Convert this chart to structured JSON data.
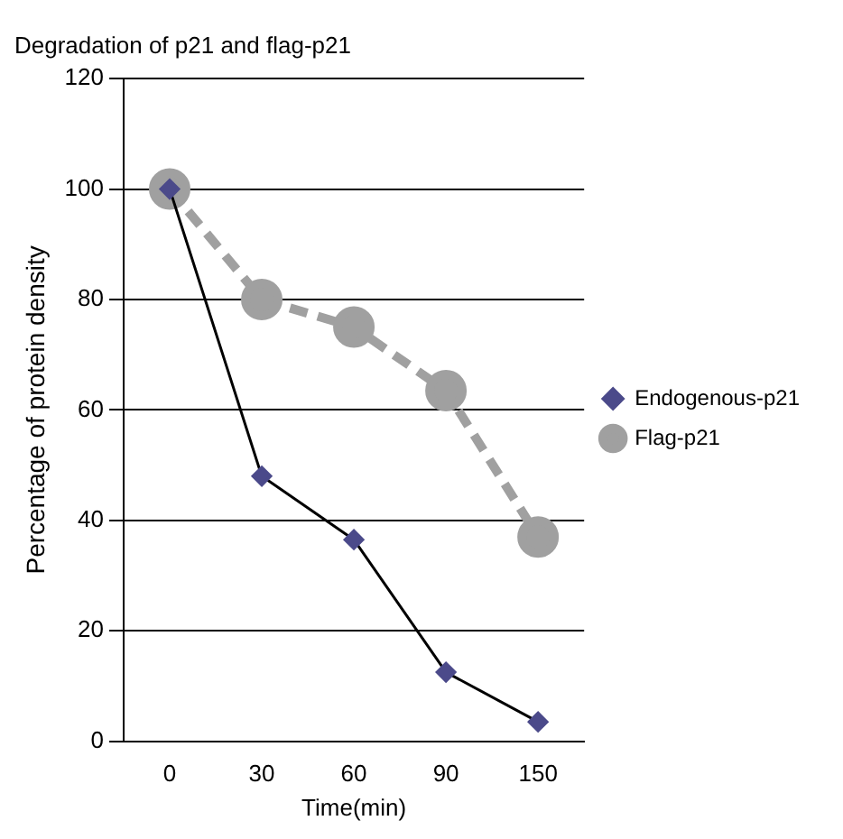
{
  "chart_data": {
    "type": "line",
    "title": "Degradation of p21 and flag-p21",
    "xlabel": "Time(min)",
    "ylabel": "Percentage of protein density",
    "categories": [
      "0",
      "30",
      "60",
      "90",
      "150"
    ],
    "series": [
      {
        "name": "Endogenous-p21",
        "color": "#4b4a8a",
        "values": [
          100,
          48,
          36.5,
          12.5,
          3.5
        ],
        "marker": "diamond",
        "line_style": "solid"
      },
      {
        "name": "Flag-p21",
        "color": "#a0a0a0",
        "values": [
          100,
          80,
          75,
          63.5,
          37
        ],
        "marker": "circle",
        "line_style": "dashed"
      }
    ],
    "ylim": [
      0,
      120
    ],
    "yticks": [
      0,
      20,
      40,
      60,
      80,
      100,
      120
    ],
    "grid": "y",
    "legend": "right"
  }
}
